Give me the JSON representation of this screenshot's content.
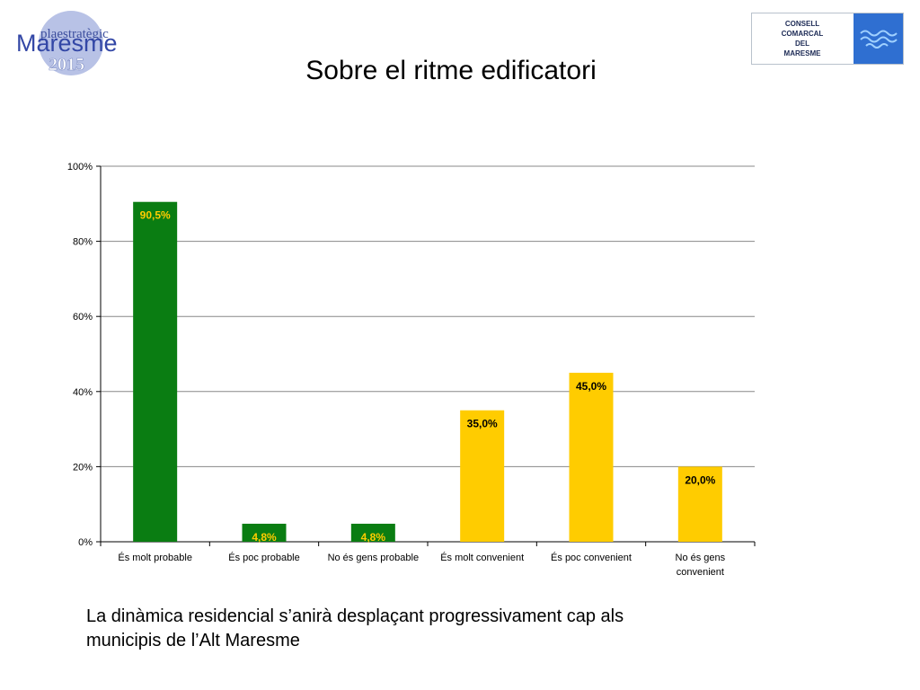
{
  "logo_left": {
    "line1": "plaestratègic",
    "line2": "Maresme",
    "line3": "2015"
  },
  "logo_right": {
    "lines": [
      "CONSELL",
      "COMARCAL",
      "DEL",
      "MARESME"
    ],
    "mark_color": "#2f6fd1"
  },
  "slide": {
    "title": "Sobre el ritme edificatori",
    "caption_line1": "La dinàmica residencial s’anirà desplaçant progressivament cap als",
    "caption_line2": "municipis de l’Alt Maresme"
  },
  "colors": {
    "green": "#0a7d12",
    "yellow": "#ffcc00",
    "grid": "#888888",
    "label_green": "#ffcc00",
    "label_yellow": "#000000"
  },
  "chart_data": {
    "type": "bar",
    "categories": [
      [
        "És molt probable"
      ],
      [
        "És poc probable"
      ],
      [
        "No és gens probable"
      ],
      [
        "És molt convenient"
      ],
      [
        "És poc convenient"
      ],
      [
        "No és gens",
        "convenient"
      ]
    ],
    "values": [
      90.5,
      4.8,
      4.8,
      35.0,
      45.0,
      20.0
    ],
    "value_labels": [
      "90,5%",
      "4,8%",
      "4,8%",
      "35,0%",
      "45,0%",
      "20,0%"
    ],
    "bar_colors": [
      "green",
      "green",
      "green",
      "yellow",
      "yellow",
      "yellow"
    ],
    "ylim": [
      0,
      100
    ],
    "y_ticks": [
      0,
      20,
      40,
      60,
      80,
      100
    ],
    "y_tick_labels": [
      "0%",
      "20%",
      "40%",
      "60%",
      "80%",
      "100%"
    ],
    "grid": true,
    "legend": "none"
  }
}
